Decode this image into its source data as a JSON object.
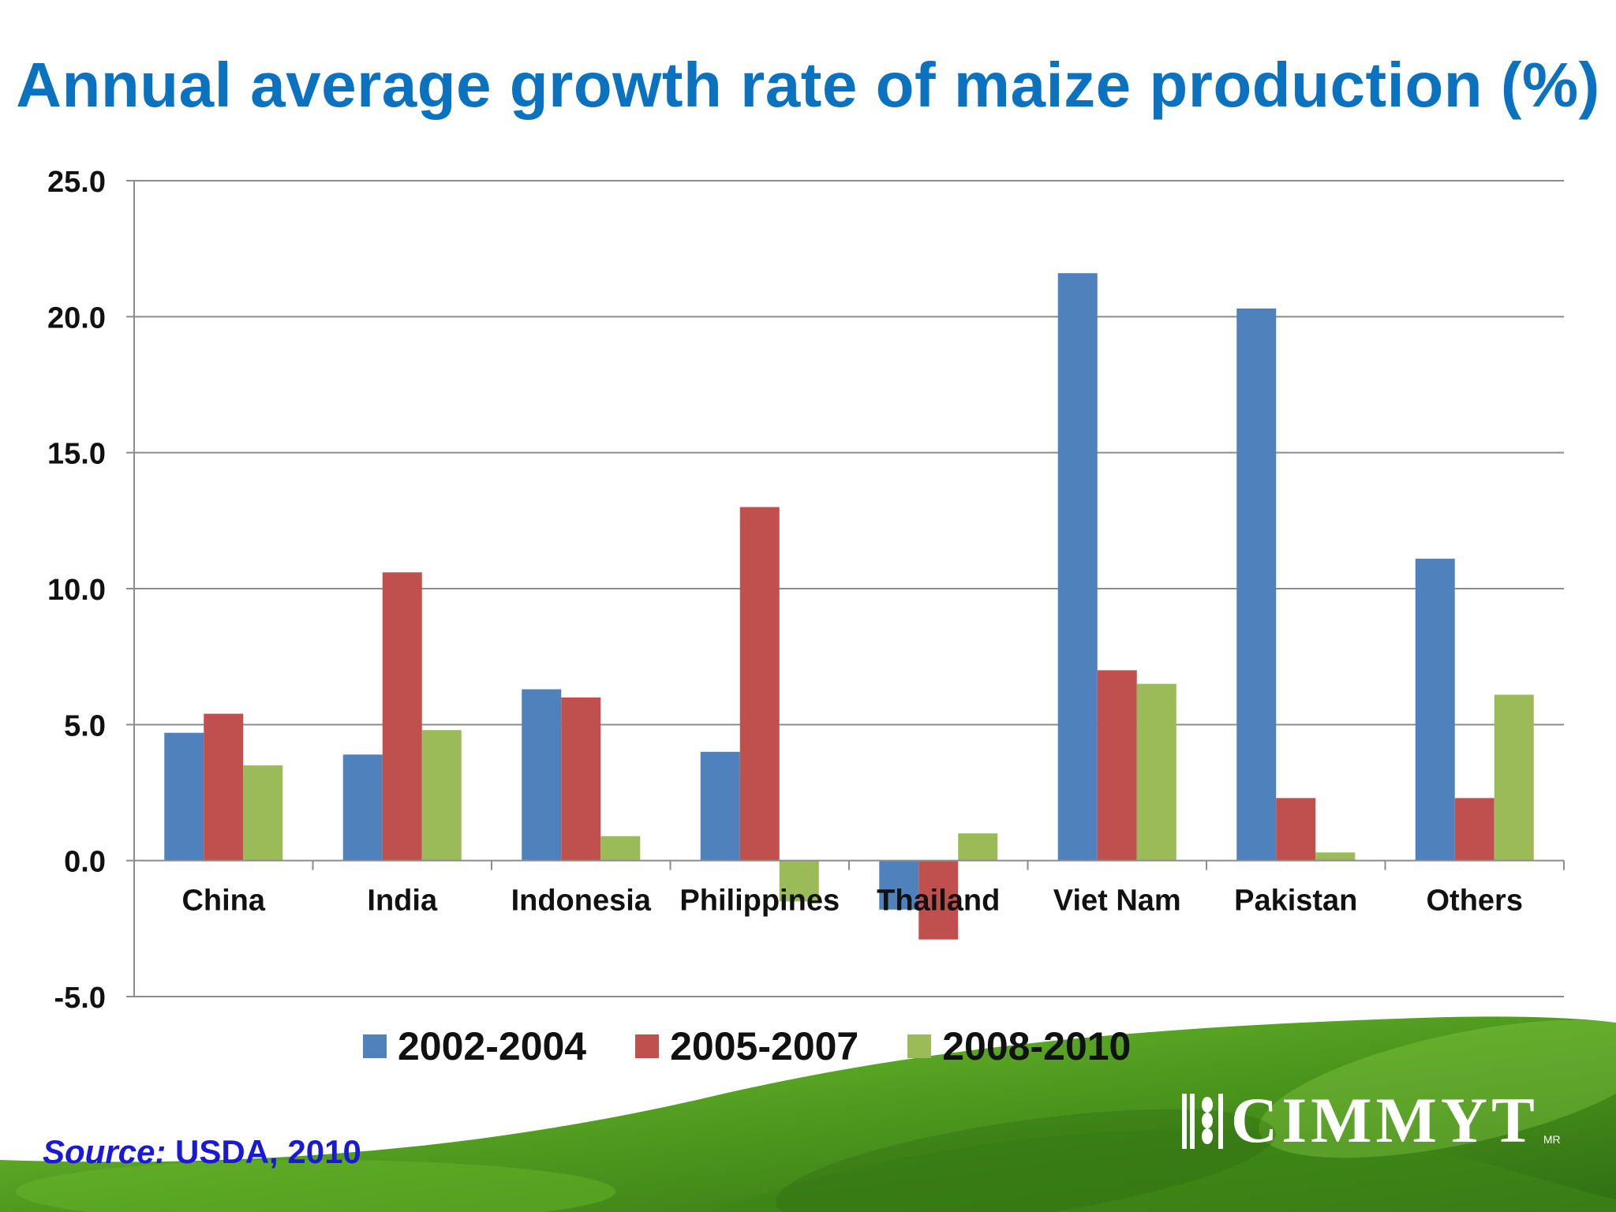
{
  "slide": {
    "title": "Annual average growth rate of maize production (%)",
    "source_prefix": "Source:",
    "source_text": " USDA, 2010",
    "logo_text": "CIMMYT",
    "logo_mark": "MR",
    "logo_icon": "wheat-icon"
  },
  "colors": {
    "title": "#0a72be",
    "series": [
      "#4f81bd",
      "#c0504d",
      "#9bbb59"
    ],
    "source": "#1a1ad6",
    "background_green": "#4f9a1e"
  },
  "chart_data": {
    "type": "bar",
    "title": "Annual average growth rate of maize production (%)",
    "categories": [
      "China",
      "India",
      "Indonesia",
      "Philippines",
      "Thailand",
      "Viet Nam",
      "Pakistan",
      "Others"
    ],
    "series": [
      {
        "name": "2002-2004",
        "values": [
          4.7,
          3.9,
          6.3,
          4.0,
          -1.8,
          21.6,
          20.3,
          11.1
        ]
      },
      {
        "name": "2005-2007",
        "values": [
          5.4,
          10.6,
          6.0,
          13.0,
          -2.9,
          7.0,
          2.3,
          2.3
        ]
      },
      {
        "name": "2008-2010",
        "values": [
          3.5,
          4.8,
          0.9,
          -1.5,
          1.0,
          6.5,
          0.3,
          6.1
        ]
      }
    ],
    "ylim": [
      -5.0,
      25.0
    ],
    "yticks": [
      "25.0",
      "20.0",
      "15.0",
      "10.0",
      "5.0",
      "0.0",
      "-5.0"
    ],
    "xlabel": "",
    "ylabel": "",
    "grid": true,
    "legend_position": "bottom"
  }
}
